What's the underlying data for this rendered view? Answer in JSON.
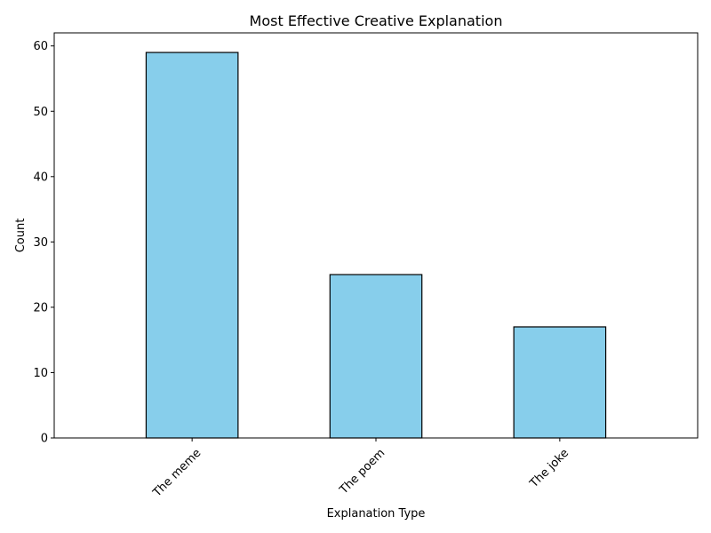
{
  "chart_data": {
    "type": "bar",
    "title": "Most Effective Creative Explanation",
    "xlabel": "Explanation Type",
    "ylabel": "Count",
    "categories": [
      "The meme",
      "The poem",
      "The joke"
    ],
    "values": [
      59,
      25,
      17
    ],
    "ylim": [
      0,
      62
    ],
    "yticks": [
      0,
      10,
      20,
      30,
      40,
      50,
      60
    ],
    "x_tick_rotation_deg": 45,
    "grid": false,
    "legend": "none",
    "bar_color": "#87ceeb",
    "bar_edge_color": "#000000"
  }
}
